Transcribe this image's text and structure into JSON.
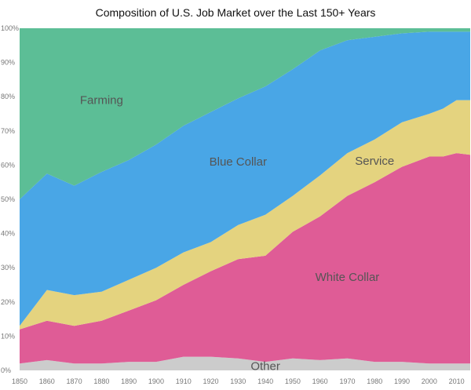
{
  "chart_data": {
    "type": "area",
    "stacked": true,
    "normalized": true,
    "title": "Composition  of U.S. Job Market over the Last 150+ Years",
    "x": [
      1850,
      1860,
      1870,
      1880,
      1890,
      1900,
      1910,
      1920,
      1930,
      1940,
      1950,
      1960,
      1970,
      1980,
      1990,
      2000,
      2005,
      2010,
      2015
    ],
    "x_tick_labels": [
      "1850",
      "1860",
      "1870",
      "1880",
      "1890",
      "1900",
      "1910",
      "1920",
      "1930",
      "1940",
      "1950",
      "1960",
      "1970",
      "1980",
      "1990",
      "2000",
      "2010"
    ],
    "x_ticks": [
      1850,
      1860,
      1870,
      1880,
      1890,
      1900,
      1910,
      1920,
      1930,
      1940,
      1950,
      1960,
      1970,
      1980,
      1990,
      2000,
      2010
    ],
    "y_tick_labels": [
      "0%",
      "10%",
      "20%",
      "30%",
      "40%",
      "50%",
      "60%",
      "70%",
      "80%",
      "90%",
      "100%"
    ],
    "ylim": [
      0,
      100
    ],
    "series": [
      {
        "name": "Other",
        "color": "#cccccc",
        "values": [
          2,
          3,
          2,
          2,
          2.5,
          2.5,
          4,
          4,
          3.5,
          2.5,
          3.5,
          3,
          3.5,
          2.5,
          2.5,
          2,
          2,
          2,
          2
        ]
      },
      {
        "name": "White Collar",
        "color": "#df5c96",
        "values": [
          10,
          11.5,
          11,
          12.5,
          15,
          18,
          21,
          25,
          29,
          31,
          37,
          42,
          47.5,
          52.5,
          57,
          60.5,
          60.5,
          61.5,
          61
        ]
      },
      {
        "name": "Service",
        "color": "#e4d37f",
        "values": [
          1,
          9,
          9,
          8.5,
          9,
          9.5,
          9.5,
          8.5,
          10,
          12,
          10.5,
          12,
          12.5,
          12.5,
          13,
          12.5,
          14,
          15.5,
          16
        ]
      },
      {
        "name": "Blue Collar",
        "color": "#49a6e6",
        "values": [
          37,
          34,
          32,
          35,
          35,
          36,
          37,
          38,
          37,
          37.5,
          37,
          36.5,
          33,
          30,
          26,
          24,
          22.5,
          20,
          20
        ]
      },
      {
        "name": "Farming",
        "color": "#5cbe96",
        "values": [
          50,
          42.5,
          46,
          42,
          38.5,
          34,
          28.5,
          24.5,
          20.5,
          17,
          12,
          6.5,
          3.5,
          2.5,
          1.5,
          1,
          1,
          1,
          1
        ]
      }
    ],
    "grid": false,
    "legend": "labels inside areas"
  }
}
